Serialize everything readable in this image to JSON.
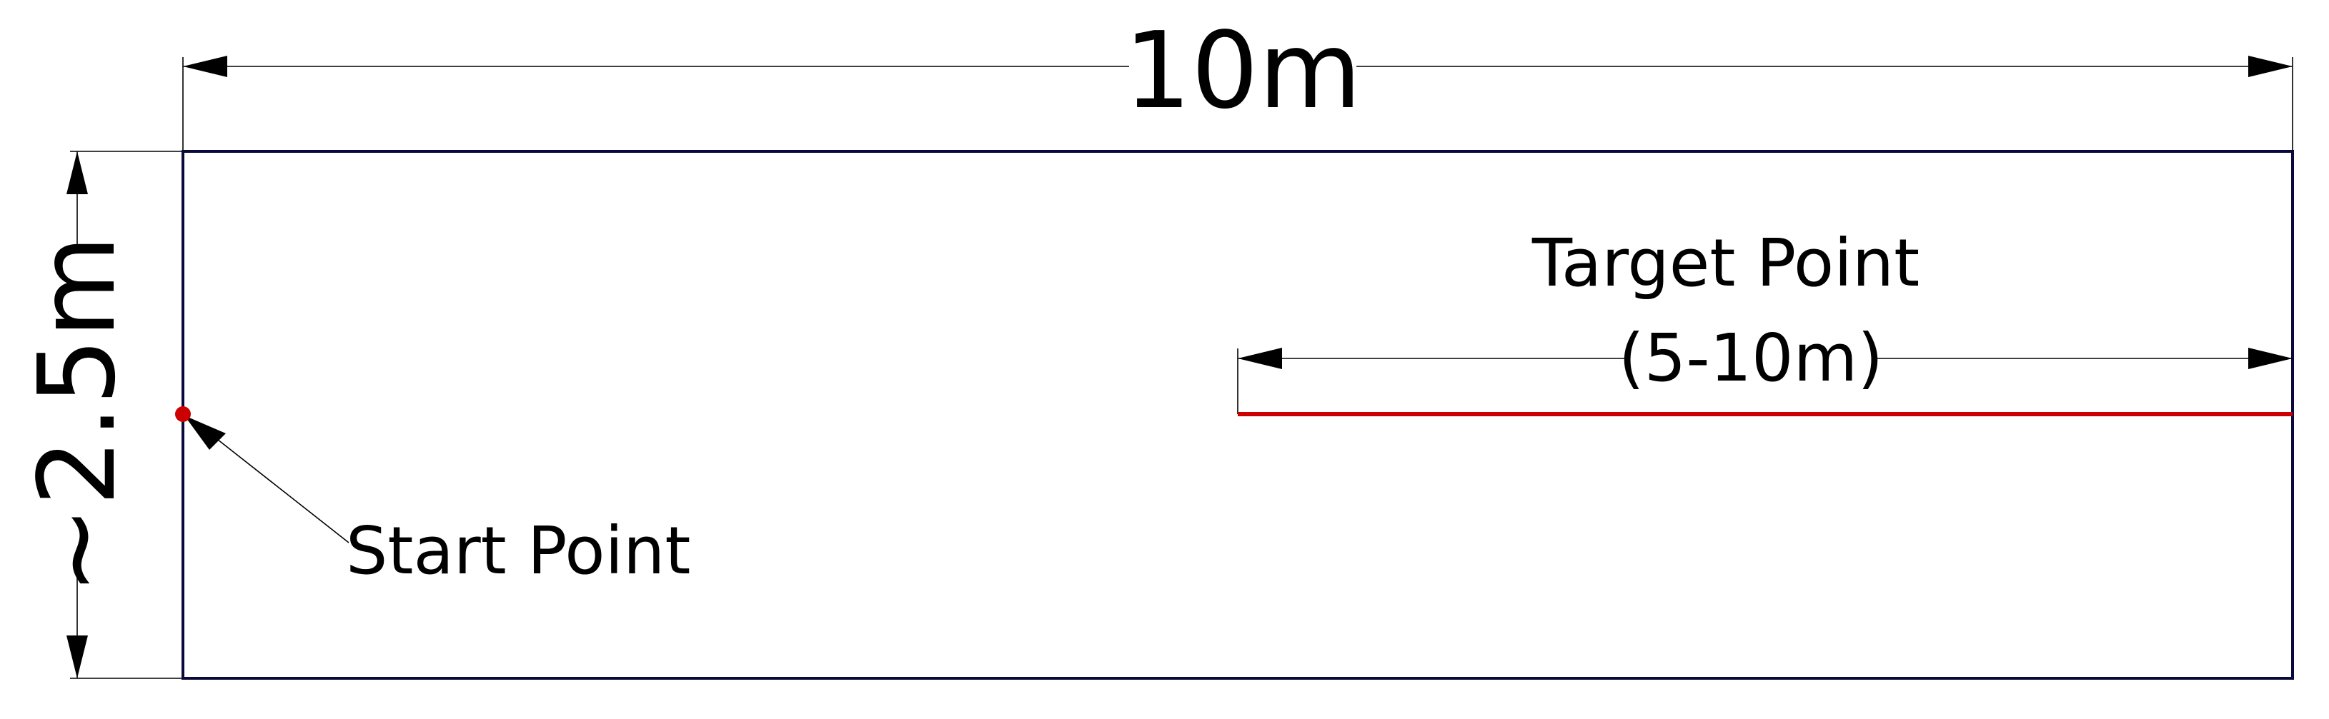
{
  "dimensions": {
    "length_label": "10m",
    "width_label": "~2.5m"
  },
  "target": {
    "title": "Target Point",
    "range_label": "(5-10m)"
  },
  "start": {
    "label": "Start Point"
  },
  "colors": {
    "outline": "#0a0a3a",
    "line": "#000000",
    "target_line": "#cc0000",
    "start_marker": "#cc0000"
  }
}
